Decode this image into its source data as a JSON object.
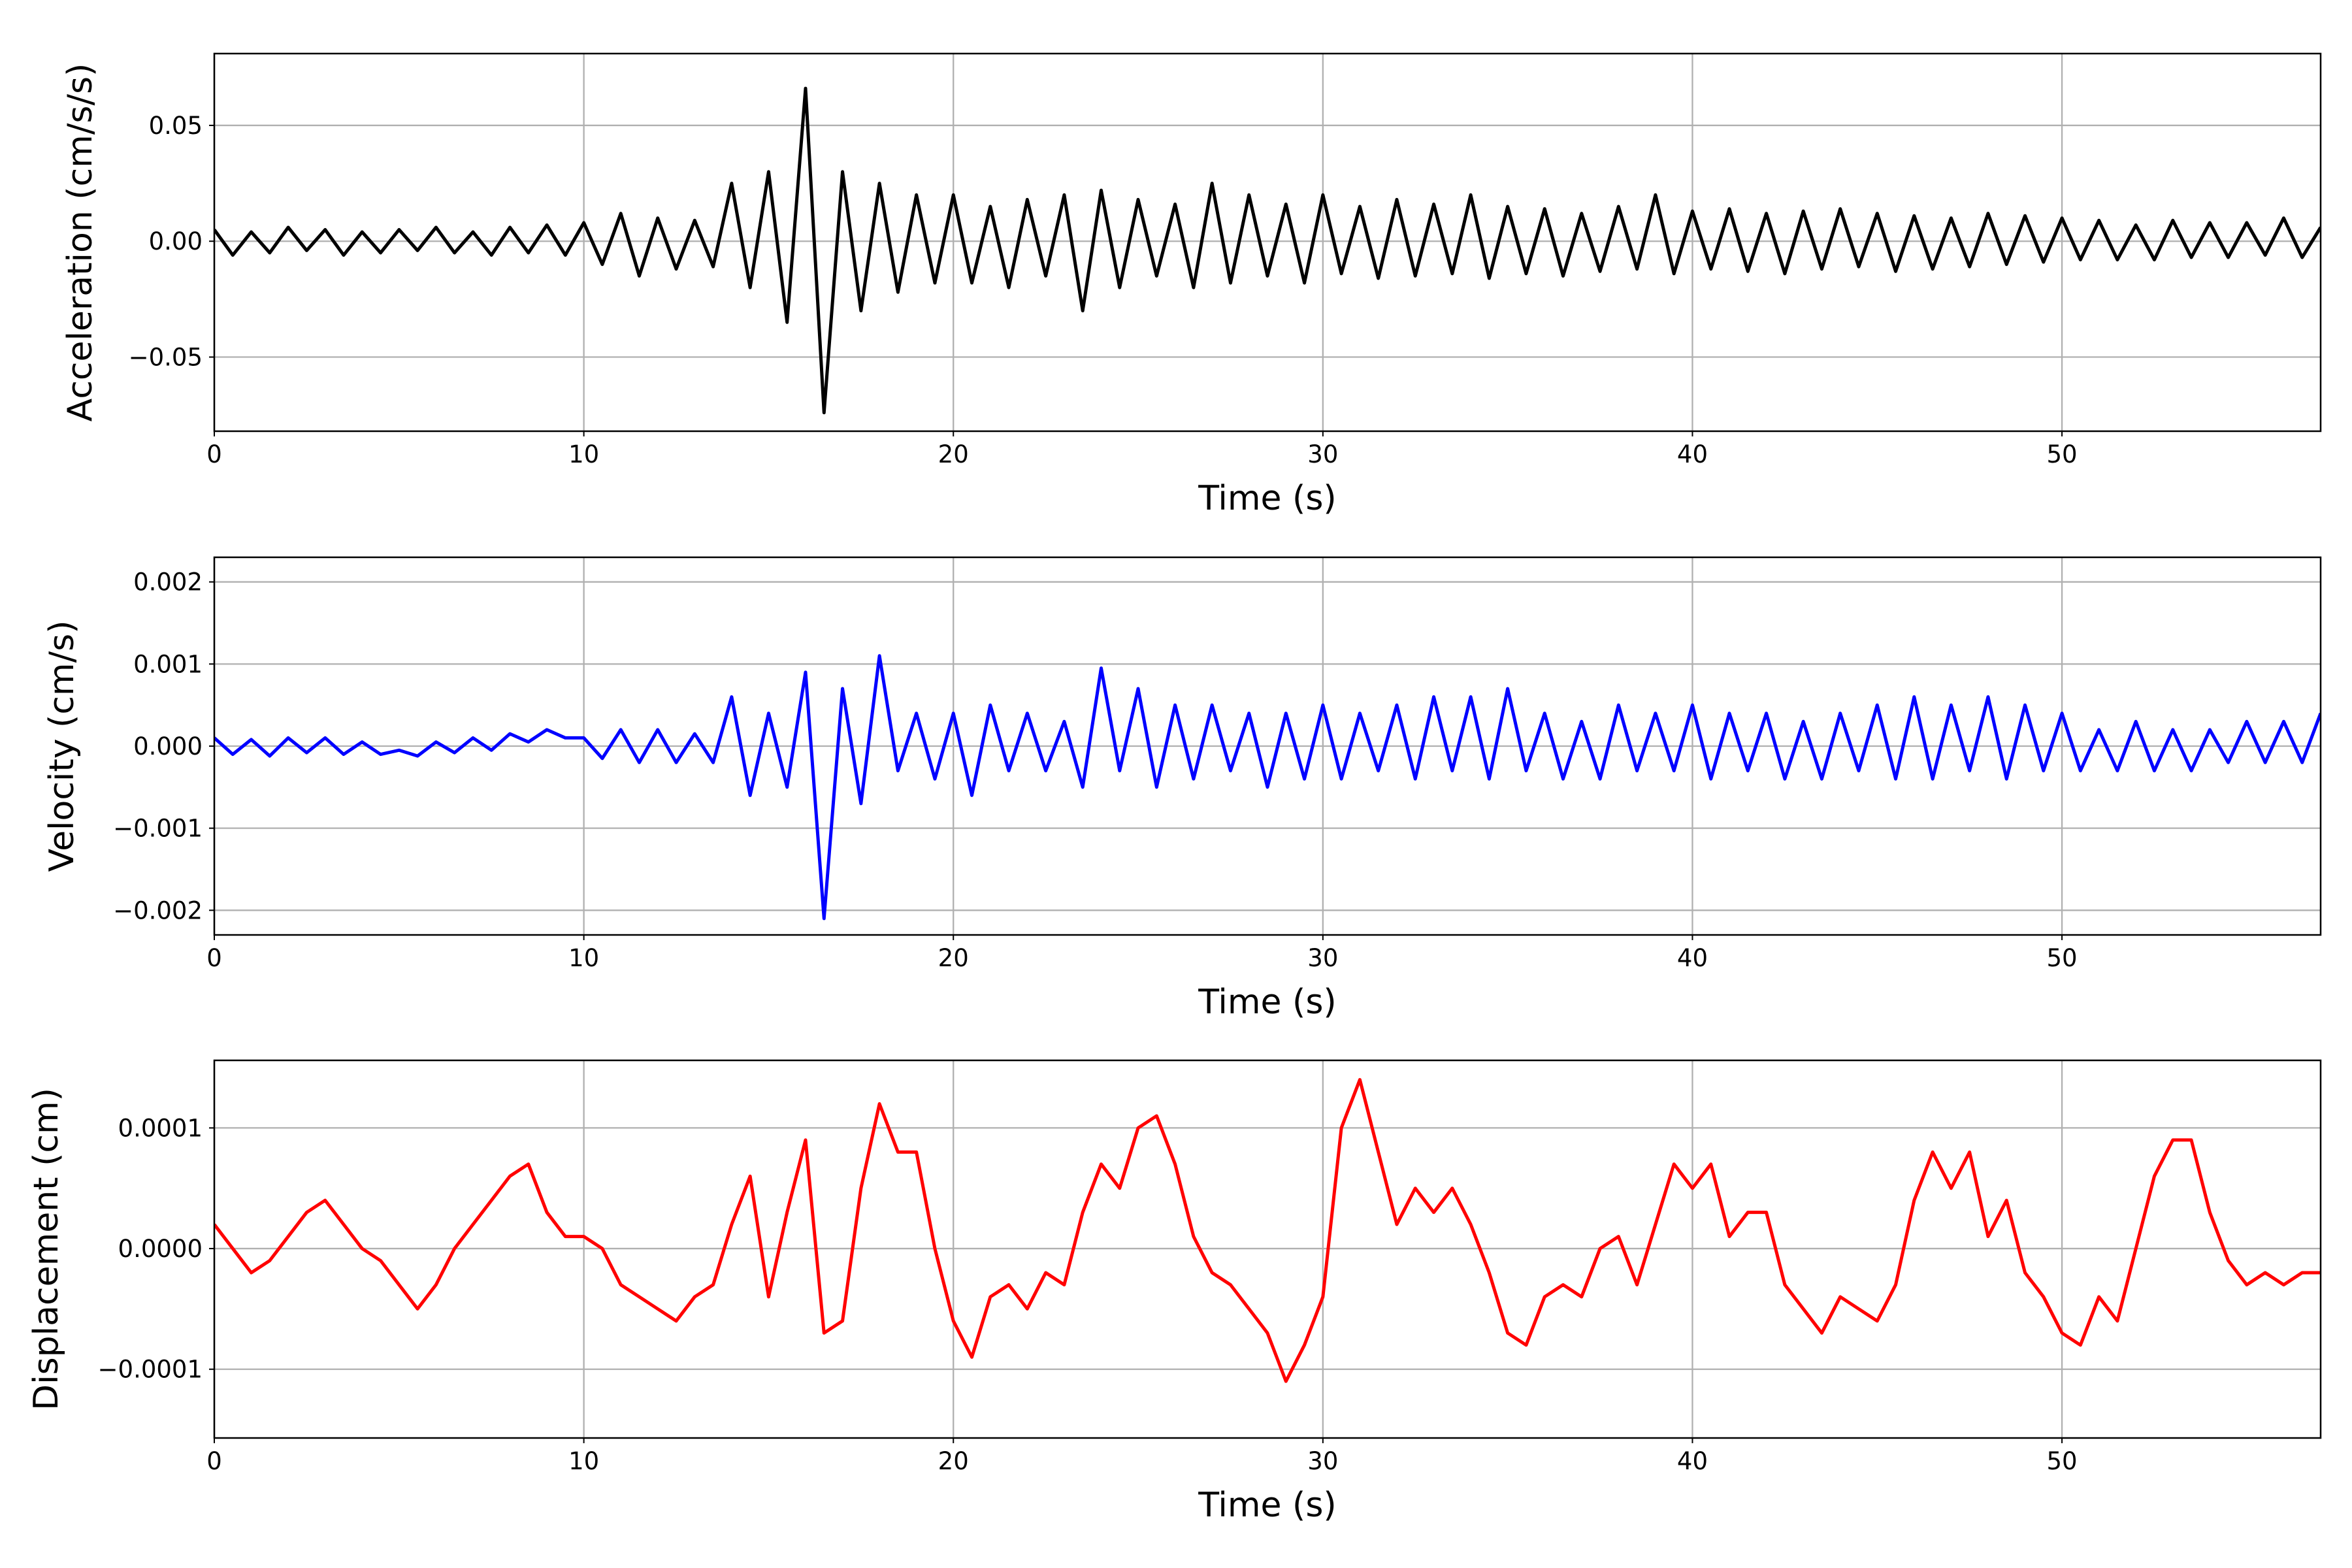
{
  "chart_data": [
    {
      "type": "line",
      "xlabel": "Time (s)",
      "ylabel": "Acceleration (cm/s/s)",
      "color": "#000000",
      "grid": true,
      "xlim": [
        0,
        57
      ],
      "xticks": [
        0,
        10,
        20,
        30,
        40,
        50
      ],
      "ylim": [
        -0.082,
        0.081
      ],
      "yticks": [
        {
          "value": -0.05,
          "label": "−0.05"
        },
        {
          "value": 0,
          "label": "0.00"
        },
        {
          "value": 0.05,
          "label": "0.05"
        }
      ],
      "x": [
        0,
        0.5,
        1,
        1.5,
        2,
        2.5,
        3,
        3.5,
        4,
        4.5,
        5,
        5.5,
        6,
        6.5,
        7,
        7.5,
        8,
        8.5,
        9,
        9.5,
        10,
        10.5,
        11,
        11.5,
        12,
        12.5,
        13,
        13.5,
        14,
        14.5,
        15,
        15.5,
        16,
        16.5,
        17,
        17.5,
        18,
        18.5,
        19,
        19.5,
        20,
        20.5,
        21,
        21.5,
        22,
        22.5,
        23,
        23.5,
        24,
        24.5,
        25,
        25.5,
        26,
        26.5,
        27,
        27.5,
        28,
        28.5,
        29,
        29.5,
        30,
        30.5,
        31,
        31.5,
        32,
        32.5,
        33,
        33.5,
        34,
        34.5,
        35,
        35.5,
        36,
        36.5,
        37,
        37.5,
        38,
        38.5,
        39,
        39.5,
        40,
        40.5,
        41,
        41.5,
        42,
        42.5,
        43,
        43.5,
        44,
        44.5,
        45,
        45.5,
        46,
        46.5,
        47,
        47.5,
        48,
        48.5,
        49,
        49.5,
        50,
        50.5,
        51,
        51.5,
        52,
        52.5,
        53,
        53.5,
        54,
        54.5,
        55,
        55.5,
        56,
        56.5,
        57
      ],
      "values": [
        0.005,
        -0.006,
        0.004,
        -0.005,
        0.006,
        -0.004,
        0.005,
        -0.006,
        0.004,
        -0.005,
        0.005,
        -0.004,
        0.006,
        -0.005,
        0.004,
        -0.006,
        0.006,
        -0.005,
        0.007,
        -0.006,
        0.008,
        -0.01,
        0.012,
        -0.015,
        0.01,
        -0.012,
        0.009,
        -0.011,
        0.025,
        -0.02,
        0.03,
        -0.035,
        0.066,
        -0.074,
        0.03,
        -0.03,
        0.025,
        -0.022,
        0.02,
        -0.018,
        0.02,
        -0.018,
        0.015,
        -0.02,
        0.018,
        -0.015,
        0.02,
        -0.03,
        0.022,
        -0.02,
        0.018,
        -0.015,
        0.016,
        -0.02,
        0.025,
        -0.018,
        0.02,
        -0.015,
        0.016,
        -0.018,
        0.02,
        -0.014,
        0.015,
        -0.016,
        0.018,
        -0.015,
        0.016,
        -0.014,
        0.02,
        -0.016,
        0.015,
        -0.014,
        0.014,
        -0.015,
        0.012,
        -0.013,
        0.015,
        -0.012,
        0.02,
        -0.014,
        0.013,
        -0.012,
        0.014,
        -0.013,
        0.012,
        -0.014,
        0.013,
        -0.012,
        0.014,
        -0.011,
        0.012,
        -0.013,
        0.011,
        -0.012,
        0.01,
        -0.011,
        0.012,
        -0.01,
        0.011,
        -0.009,
        0.01,
        -0.008,
        0.009,
        -0.008,
        0.007,
        -0.008,
        0.009,
        -0.007,
        0.008,
        -0.007,
        0.008,
        -0.006,
        0.01,
        -0.007,
        0.006
      ]
    },
    {
      "type": "line",
      "xlabel": "Time (s)",
      "ylabel": "Velocity (cm/s)",
      "color": "#0000ff",
      "grid": true,
      "xlim": [
        0,
        57
      ],
      "xticks": [
        0,
        10,
        20,
        30,
        40,
        50
      ],
      "ylim": [
        -0.0023,
        0.0023
      ],
      "yticks": [
        {
          "value": -0.002,
          "label": "−0.002"
        },
        {
          "value": -0.001,
          "label": "−0.001"
        },
        {
          "value": 0,
          "label": "0.000"
        },
        {
          "value": 0.001,
          "label": "0.001"
        },
        {
          "value": 0.002,
          "label": "0.002"
        }
      ],
      "x": [
        0,
        0.5,
        1,
        1.5,
        2,
        2.5,
        3,
        3.5,
        4,
        4.5,
        5,
        5.5,
        6,
        6.5,
        7,
        7.5,
        8,
        8.5,
        9,
        9.5,
        10,
        10.5,
        11,
        11.5,
        12,
        12.5,
        13,
        13.5,
        14,
        14.5,
        15,
        15.5,
        16,
        16.5,
        17,
        17.5,
        18,
        18.5,
        19,
        19.5,
        20,
        20.5,
        21,
        21.5,
        22,
        22.5,
        23,
        23.5,
        24,
        24.5,
        25,
        25.5,
        26,
        26.5,
        27,
        27.5,
        28,
        28.5,
        29,
        29.5,
        30,
        30.5,
        31,
        31.5,
        32,
        32.5,
        33,
        33.5,
        34,
        34.5,
        35,
        35.5,
        36,
        36.5,
        37,
        37.5,
        38,
        38.5,
        39,
        39.5,
        40,
        40.5,
        41,
        41.5,
        42,
        42.5,
        43,
        43.5,
        44,
        44.5,
        45,
        45.5,
        46,
        46.5,
        47,
        47.5,
        48,
        48.5,
        49,
        49.5,
        50,
        50.5,
        51,
        51.5,
        52,
        52.5,
        53,
        53.5,
        54,
        54.5,
        55,
        55.5,
        56,
        56.5,
        57
      ],
      "values": [
        0.0001,
        -0.0001,
        8e-05,
        -0.00012,
        0.0001,
        -8e-05,
        0.0001,
        -0.0001,
        5e-05,
        -0.0001,
        -5e-05,
        -0.00012,
        5e-05,
        -8e-05,
        0.0001,
        -5e-05,
        0.00015,
        5e-05,
        0.0002,
        0.0001,
        0.0001,
        -0.00015,
        0.0002,
        -0.0002,
        0.0002,
        -0.0002,
        0.00015,
        -0.0002,
        0.0006,
        -0.0006,
        0.0004,
        -0.0005,
        0.0009,
        -0.0021,
        0.0007,
        -0.0007,
        0.0011,
        -0.0003,
        0.0004,
        -0.0004,
        0.0004,
        -0.0006,
        0.0005,
        -0.0003,
        0.0004,
        -0.0003,
        0.0003,
        -0.0005,
        0.00095,
        -0.0003,
        0.0007,
        -0.0005,
        0.0005,
        -0.0004,
        0.0005,
        -0.0003,
        0.0004,
        -0.0005,
        0.0004,
        -0.0004,
        0.0005,
        -0.0004,
        0.0004,
        -0.0003,
        0.0005,
        -0.0004,
        0.0006,
        -0.0003,
        0.0006,
        -0.0004,
        0.0007,
        -0.0003,
        0.0004,
        -0.0004,
        0.0003,
        -0.0004,
        0.0005,
        -0.0003,
        0.0004,
        -0.0003,
        0.0005,
        -0.0004,
        0.0004,
        -0.0003,
        0.0004,
        -0.0004,
        0.0003,
        -0.0004,
        0.0004,
        -0.0003,
        0.0005,
        -0.0004,
        0.0006,
        -0.0004,
        0.0005,
        -0.0003,
        0.0006,
        -0.0004,
        0.0005,
        -0.0003,
        0.0004,
        -0.0003,
        0.0002,
        -0.0003,
        0.0003,
        -0.0003,
        0.0002,
        -0.0003,
        0.0002,
        -0.0002,
        0.0003,
        -0.0002,
        0.0003,
        -0.0002,
        0.0004
      ]
    },
    {
      "type": "line",
      "xlabel": "Time (s)",
      "ylabel": "Displacement (cm)",
      "color": "#ff0000",
      "grid": true,
      "xlim": [
        0,
        57
      ],
      "xticks": [
        0,
        10,
        20,
        30,
        40,
        50
      ],
      "ylim": [
        -0.000157,
        0.000156
      ],
      "yticks": [
        {
          "value": -0.0001,
          "label": "−0.0001"
        },
        {
          "value": 0,
          "label": "0.0000"
        },
        {
          "value": 0.0001,
          "label": "0.0001"
        }
      ],
      "x": [
        0,
        0.5,
        1,
        1.5,
        2,
        2.5,
        3,
        3.5,
        4,
        4.5,
        5,
        5.5,
        6,
        6.5,
        7,
        7.5,
        8,
        8.5,
        9,
        9.5,
        10,
        10.5,
        11,
        11.5,
        12,
        12.5,
        13,
        13.5,
        14,
        14.5,
        15,
        15.5,
        16,
        16.5,
        17,
        17.5,
        18,
        18.5,
        19,
        19.5,
        20,
        20.5,
        21,
        21.5,
        22,
        22.5,
        23,
        23.5,
        24,
        24.5,
        25,
        25.5,
        26,
        26.5,
        27,
        27.5,
        28,
        28.5,
        29,
        29.5,
        30,
        30.5,
        31,
        31.5,
        32,
        32.5,
        33,
        33.5,
        34,
        34.5,
        35,
        35.5,
        36,
        36.5,
        37,
        37.5,
        38,
        38.5,
        39,
        39.5,
        40,
        40.5,
        41,
        41.5,
        42,
        42.5,
        43,
        43.5,
        44,
        44.5,
        45,
        45.5,
        46,
        46.5,
        47,
        47.5,
        48,
        48.5,
        49,
        49.5,
        50,
        50.5,
        51,
        51.5,
        52,
        52.5,
        53,
        53.5,
        54,
        54.5,
        55,
        55.5,
        56,
        56.5,
        57
      ],
      "values": [
        2e-05,
        0,
        -2e-05,
        -1e-05,
        1e-05,
        3e-05,
        4e-05,
        2e-05,
        0,
        -1e-05,
        -3e-05,
        -5e-05,
        -3e-05,
        0,
        2e-05,
        4e-05,
        6e-05,
        7e-05,
        3e-05,
        1e-05,
        1e-05,
        0,
        -3e-05,
        -4e-05,
        -5e-05,
        -6e-05,
        -4e-05,
        -3e-05,
        2e-05,
        6e-05,
        -4e-05,
        3e-05,
        9e-05,
        -7e-05,
        -6e-05,
        5e-05,
        0.00012,
        8e-05,
        8e-05,
        0,
        -6e-05,
        -9e-05,
        -4e-05,
        -3e-05,
        -5e-05,
        -2e-05,
        -3e-05,
        3e-05,
        7e-05,
        5e-05,
        0.0001,
        0.00011,
        7e-05,
        1e-05,
        -2e-05,
        -3e-05,
        -5e-05,
        -7e-05,
        -0.00011,
        -8e-05,
        -4e-05,
        0.0001,
        0.00014,
        8e-05,
        2e-05,
        5e-05,
        3e-05,
        5e-05,
        2e-05,
        -2e-05,
        -7e-05,
        -8e-05,
        -4e-05,
        -3e-05,
        -4e-05,
        0,
        1e-05,
        -3e-05,
        2e-05,
        7e-05,
        5e-05,
        7e-05,
        1e-05,
        3e-05,
        3e-05,
        -3e-05,
        -5e-05,
        -7e-05,
        -4e-05,
        -5e-05,
        -6e-05,
        -3e-05,
        4e-05,
        8e-05,
        5e-05,
        8e-05,
        1e-05,
        4e-05,
        -2e-05,
        -4e-05,
        -7e-05,
        -8e-05,
        -4e-05,
        -6e-05,
        0,
        6e-05,
        9e-05,
        9e-05,
        3e-05,
        -1e-05,
        -3e-05,
        -2e-05,
        -3e-05,
        -2e-05,
        -2e-05
      ]
    }
  ]
}
